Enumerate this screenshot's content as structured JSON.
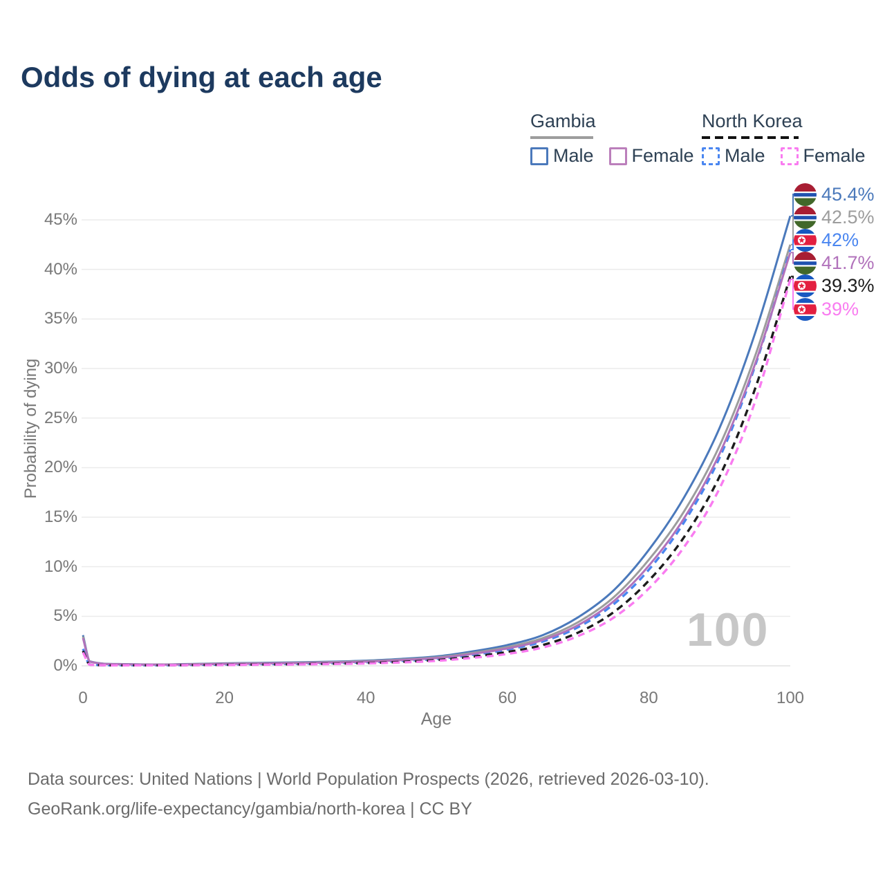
{
  "title": "Odds of dying at each age",
  "watermark_age": "100",
  "legend": {
    "groups": [
      {
        "label": "Gambia",
        "rule_style": "solid",
        "rule_color": "#9d9d9d",
        "items": [
          {
            "label": "Male",
            "color": "#4b79bb",
            "dash": "solid"
          },
          {
            "label": "Female",
            "color": "#bb7fbb",
            "dash": "solid"
          }
        ]
      },
      {
        "label": "North Korea",
        "rule_style": "dashed",
        "rule_color": "#111111",
        "items": [
          {
            "label": "Male",
            "color": "#4a86f0",
            "dash": "dashed"
          },
          {
            "label": "Female",
            "color": "#f97cf0",
            "dash": "dashed"
          }
        ]
      }
    ]
  },
  "footer": {
    "line1": "Data sources: United Nations | World Population Prospects (2026, retrieved 2026-03-10).",
    "line2": "GeoRank.org/life-expectancy/gambia/north-korea | CC BY"
  },
  "chart_data": {
    "type": "line",
    "title": "Odds of dying at each age",
    "xlabel": "Age",
    "ylabel": "Probability of dying",
    "xlim": [
      0,
      100
    ],
    "ylim_pct": [
      0,
      47
    ],
    "grid": "horizontal",
    "legend_position": "top-right",
    "x_ticks": [
      {
        "value": 0,
        "label": "0"
      },
      {
        "value": 20,
        "label": "20"
      },
      {
        "value": 40,
        "label": "40"
      },
      {
        "value": 60,
        "label": "60"
      },
      {
        "value": 80,
        "label": "80"
      },
      {
        "value": 100,
        "label": "100"
      }
    ],
    "y_ticks": [
      {
        "value": 0,
        "label": "0%"
      },
      {
        "value": 5,
        "label": "5%"
      },
      {
        "value": 10,
        "label": "10%"
      },
      {
        "value": 15,
        "label": "15%"
      },
      {
        "value": 20,
        "label": "20%"
      },
      {
        "value": 25,
        "label": "25%"
      },
      {
        "value": 30,
        "label": "30%"
      },
      {
        "value": 35,
        "label": "35%"
      },
      {
        "value": 40,
        "label": "40%"
      },
      {
        "value": 45,
        "label": "45%"
      }
    ],
    "ages": [
      0,
      1,
      5,
      10,
      15,
      20,
      25,
      30,
      35,
      40,
      45,
      50,
      55,
      60,
      65,
      70,
      75,
      80,
      85,
      90,
      95,
      100
    ],
    "series": [
      {
        "name": "Gambia Male",
        "country": "Gambia",
        "sex": "Male",
        "color": "#4b79bb",
        "dash": "solid",
        "flag": "gambia",
        "end_value_pct": 45.4,
        "end_label": "45.4%",
        "values_pct": [
          3.1,
          0.45,
          0.18,
          0.14,
          0.18,
          0.25,
          0.3,
          0.35,
          0.42,
          0.52,
          0.7,
          0.95,
          1.45,
          2.1,
          3.1,
          4.9,
          7.6,
          11.7,
          17.0,
          24.0,
          33.5,
          45.4
        ]
      },
      {
        "name": "Gambia All",
        "country": "Gambia",
        "sex": "All",
        "color": "#9d9d9d",
        "dash": "solid",
        "flag": "gambia",
        "end_value_pct": 42.5,
        "end_label": "42.5%",
        "values_pct": [
          2.95,
          0.43,
          0.17,
          0.13,
          0.16,
          0.22,
          0.26,
          0.31,
          0.38,
          0.47,
          0.63,
          0.85,
          1.3,
          1.9,
          2.8,
          4.4,
          6.9,
          10.7,
          15.6,
          22.2,
          31.2,
          42.5
        ]
      },
      {
        "name": "North Korea Male",
        "country": "North Korea",
        "sex": "Male",
        "color": "#4a86f0",
        "dash": "dashed",
        "flag": "north-korea",
        "end_value_pct": 42.0,
        "end_label": "42%",
        "values_pct": [
          1.7,
          0.12,
          0.06,
          0.06,
          0.09,
          0.13,
          0.17,
          0.21,
          0.27,
          0.36,
          0.5,
          0.7,
          1.1,
          1.65,
          2.45,
          3.9,
          6.2,
          9.7,
          14.5,
          21.0,
          30.2,
          42.0
        ]
      },
      {
        "name": "Gambia Female",
        "country": "Gambia",
        "sex": "Female",
        "color": "#b172bb",
        "dash": "solid",
        "flag": "gambia",
        "end_value_pct": 41.7,
        "end_label": "41.7%",
        "values_pct": [
          2.8,
          0.41,
          0.16,
          0.12,
          0.14,
          0.19,
          0.23,
          0.27,
          0.33,
          0.42,
          0.58,
          0.78,
          1.2,
          1.75,
          2.6,
          4.1,
          6.5,
          10.1,
          14.9,
          21.4,
          30.4,
          41.7
        ]
      },
      {
        "name": "North Korea All",
        "country": "North Korea",
        "sex": "All",
        "color": "#1c1c1c",
        "dash": "dashed",
        "flag": "north-korea",
        "end_value_pct": 39.3,
        "end_label": "39.3%",
        "values_pct": [
          1.5,
          0.11,
          0.05,
          0.05,
          0.07,
          0.1,
          0.13,
          0.16,
          0.21,
          0.28,
          0.4,
          0.58,
          0.92,
          1.4,
          2.1,
          3.35,
          5.4,
          8.6,
          13.0,
          19.1,
          27.9,
          39.3
        ]
      },
      {
        "name": "North Korea Female",
        "country": "North Korea",
        "sex": "Female",
        "color": "#f97cf0",
        "dash": "dashed",
        "flag": "north-korea",
        "end_value_pct": 39.0,
        "end_label": "39%",
        "values_pct": [
          1.35,
          0.1,
          0.05,
          0.05,
          0.06,
          0.08,
          0.11,
          0.14,
          0.18,
          0.24,
          0.34,
          0.5,
          0.8,
          1.2,
          1.85,
          3.0,
          4.85,
          7.8,
          12.0,
          17.9,
          26.6,
          39.0
        ]
      }
    ]
  }
}
